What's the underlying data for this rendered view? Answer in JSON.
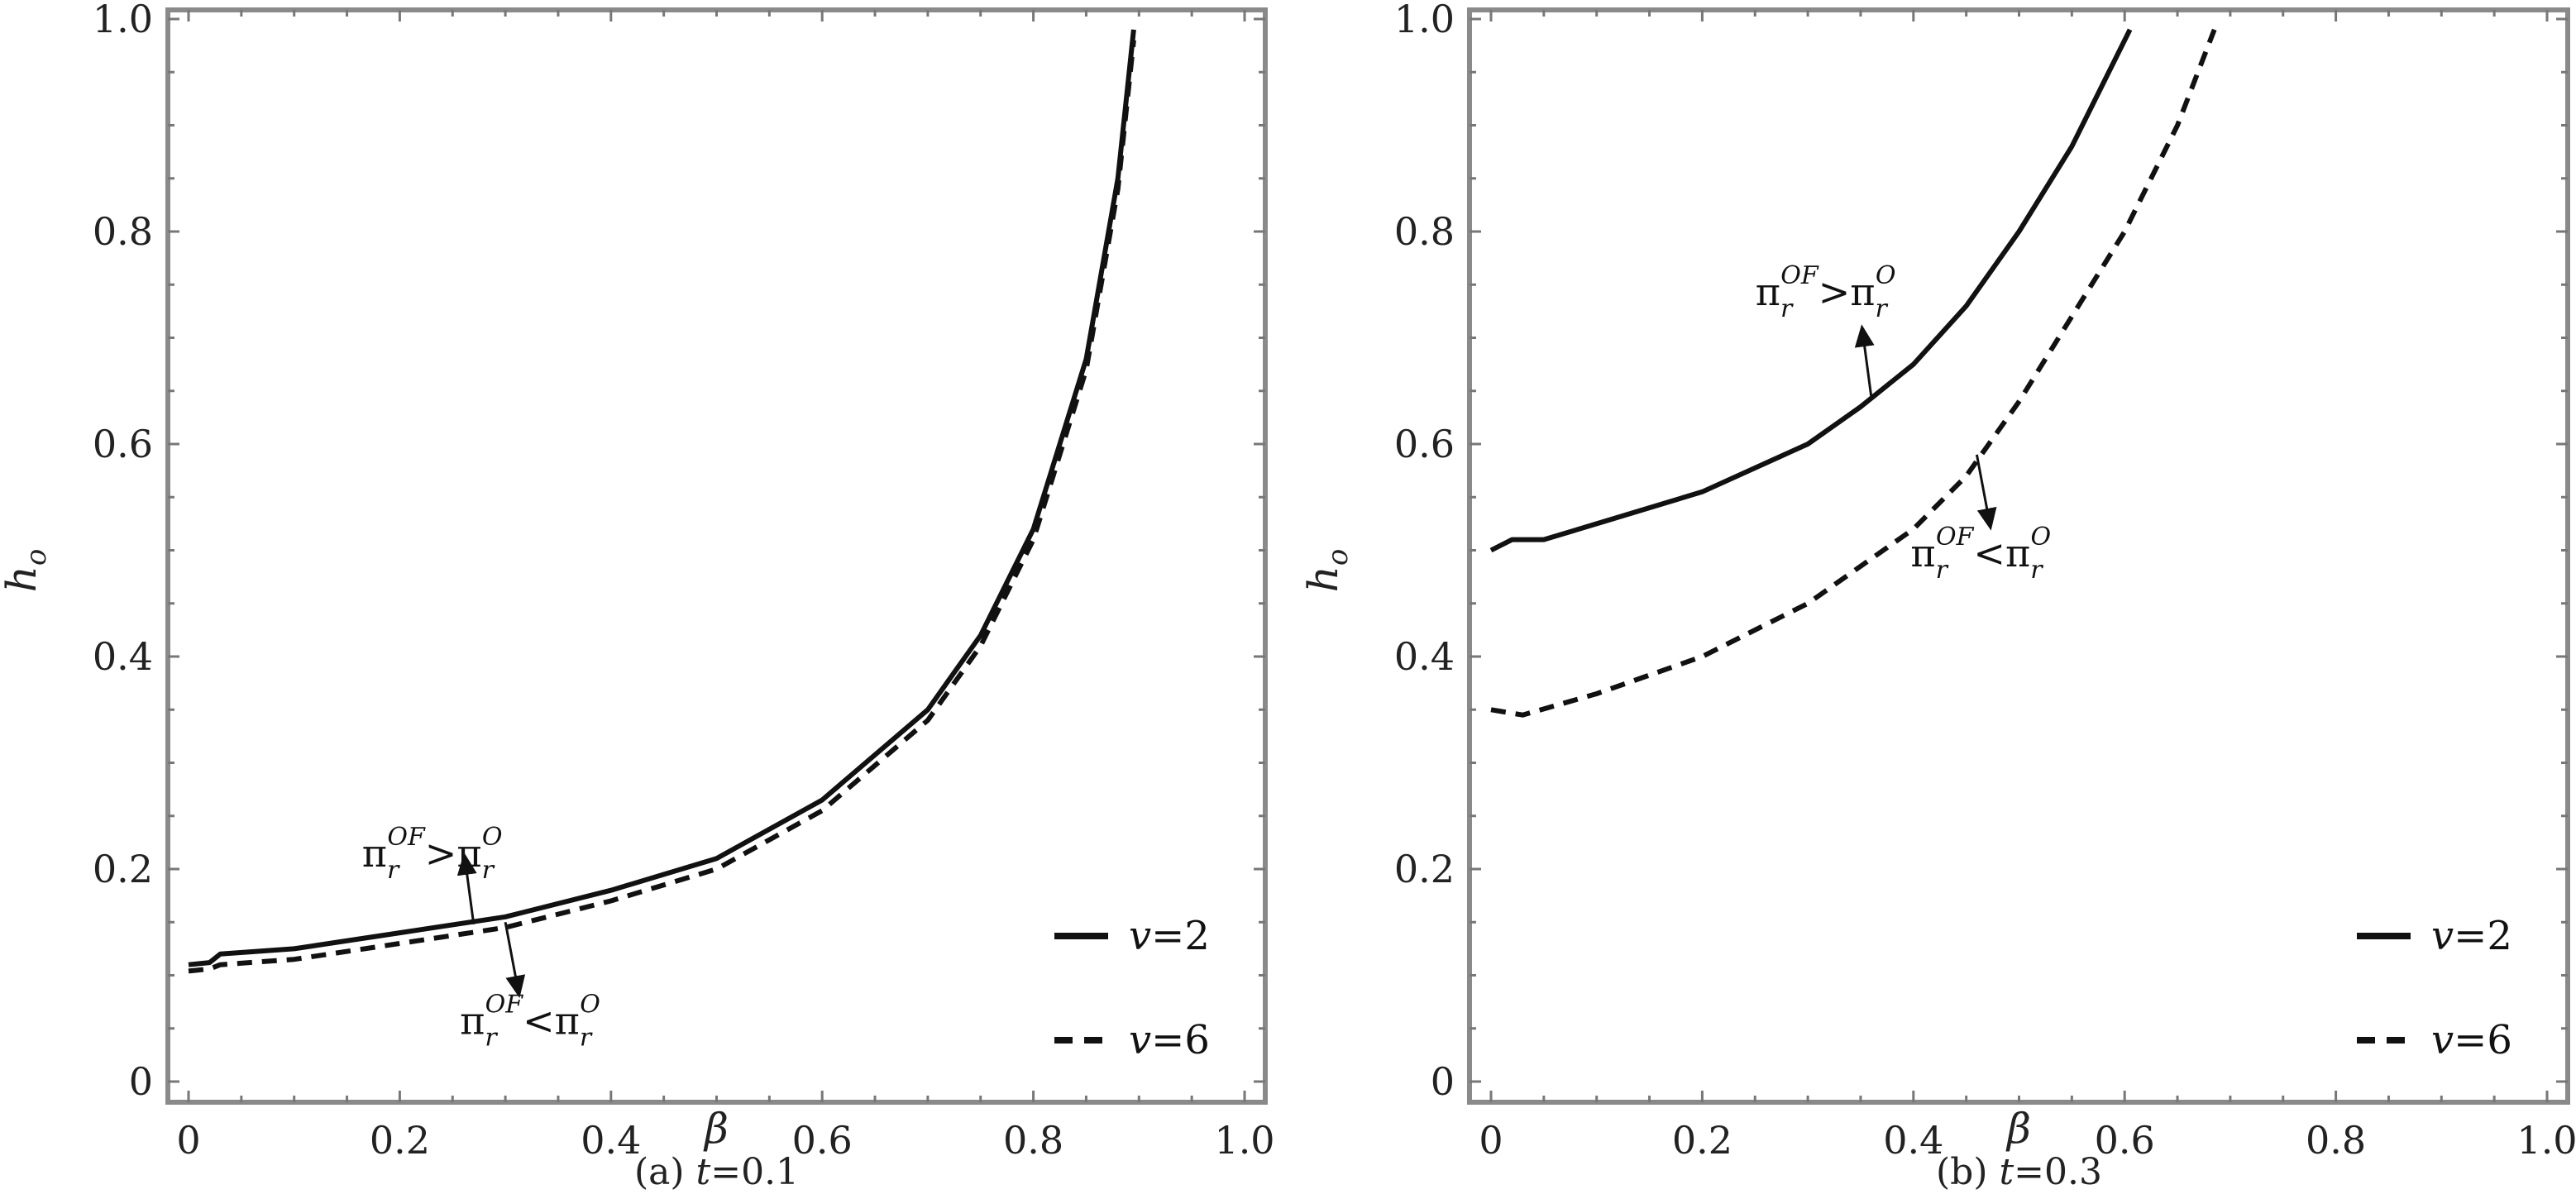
{
  "chart_data": [
    {
      "type": "line",
      "caption": "(a) t=0.1",
      "caption_prefix": "(a) ",
      "caption_var": "t",
      "caption_value": "=0.1",
      "xlabel": "β",
      "ylabel": "h",
      "ylabel_sub": "o",
      "xlim": [
        0,
        1.0
      ],
      "ylim": [
        0,
        1.0
      ],
      "xticks": [
        "0",
        "0.2",
        "0.4",
        "0.6",
        "0.8",
        "1.0"
      ],
      "yticks": [
        "0",
        "0.2",
        "0.4",
        "0.6",
        "0.8",
        "1.0"
      ],
      "legend_position": "bottom-right",
      "series": [
        {
          "name": "v=2",
          "var": "v",
          "value": "=2",
          "style": "solid",
          "x": [
            0,
            0.02,
            0.03,
            0.1,
            0.2,
            0.3,
            0.4,
            0.5,
            0.6,
            0.7,
            0.75,
            0.8,
            0.85,
            0.88,
            0.895
          ],
          "y": [
            0.11,
            0.112,
            0.12,
            0.125,
            0.14,
            0.155,
            0.18,
            0.21,
            0.265,
            0.35,
            0.42,
            0.52,
            0.68,
            0.85,
            0.99
          ]
        },
        {
          "name": "v=6",
          "var": "v",
          "value": "=6",
          "style": "dashed",
          "x": [
            0,
            0.02,
            0.03,
            0.1,
            0.2,
            0.3,
            0.4,
            0.5,
            0.6,
            0.7,
            0.75,
            0.8,
            0.85,
            0.88,
            0.895
          ],
          "y": [
            0.104,
            0.106,
            0.11,
            0.115,
            0.13,
            0.145,
            0.17,
            0.2,
            0.255,
            0.34,
            0.41,
            0.51,
            0.67,
            0.84,
            0.98
          ]
        }
      ],
      "annotations": [
        {
          "text_lhs": "π",
          "sub": "r",
          "sup": "OF",
          "op": ">",
          "text_rhs": "π",
          "sub2": "r",
          "sup2": "O",
          "at": [
            0.27,
            0.148
          ],
          "direction": "up"
        },
        {
          "text_lhs": "π",
          "sub": "r",
          "sup": "OF",
          "op": "<",
          "text_rhs": "π",
          "sub2": "r",
          "sup2": "O",
          "at": [
            0.3,
            0.15
          ],
          "direction": "down"
        }
      ]
    },
    {
      "type": "line",
      "caption": "(b) t=0.3",
      "caption_prefix": "(b) ",
      "caption_var": "t",
      "caption_value": "=0.3",
      "xlabel": "β",
      "ylabel": "h",
      "ylabel_sub": "o",
      "xlim": [
        0,
        1.0
      ],
      "ylim": [
        0,
        1.0
      ],
      "xticks": [
        "0",
        "0.2",
        "0.4",
        "0.6",
        "0.8",
        "1.0"
      ],
      "yticks": [
        "0",
        "0.2",
        "0.4",
        "0.6",
        "0.8",
        "1.0"
      ],
      "legend_position": "bottom-right",
      "series": [
        {
          "name": "v=2",
          "var": "v",
          "value": "=2",
          "style": "solid",
          "x": [
            0,
            0.02,
            0.05,
            0.1,
            0.2,
            0.3,
            0.35,
            0.4,
            0.45,
            0.5,
            0.55,
            0.6,
            0.605
          ],
          "y": [
            0.5,
            0.51,
            0.51,
            0.525,
            0.555,
            0.6,
            0.635,
            0.675,
            0.73,
            0.8,
            0.88,
            0.98,
            0.99
          ]
        },
        {
          "name": "v=6",
          "var": "v",
          "value": "=6",
          "style": "dashed",
          "x": [
            0,
            0.03,
            0.1,
            0.2,
            0.3,
            0.4,
            0.45,
            0.5,
            0.55,
            0.6,
            0.65,
            0.685
          ],
          "y": [
            0.35,
            0.345,
            0.365,
            0.4,
            0.45,
            0.52,
            0.57,
            0.64,
            0.72,
            0.8,
            0.9,
            0.99
          ]
        }
      ],
      "annotations": [
        {
          "text_lhs": "π",
          "sub": "r",
          "sup": "OF",
          "op": ">",
          "text_rhs": "π",
          "sub2": "r",
          "sup2": "O",
          "at": [
            0.36,
            0.645
          ],
          "direction": "up"
        },
        {
          "text_lhs": "π",
          "sub": "r",
          "sup": "OF",
          "op": "<",
          "text_rhs": "π",
          "sub2": "r",
          "sup2": "O",
          "at": [
            0.46,
            0.59
          ],
          "direction": "down"
        }
      ]
    }
  ]
}
